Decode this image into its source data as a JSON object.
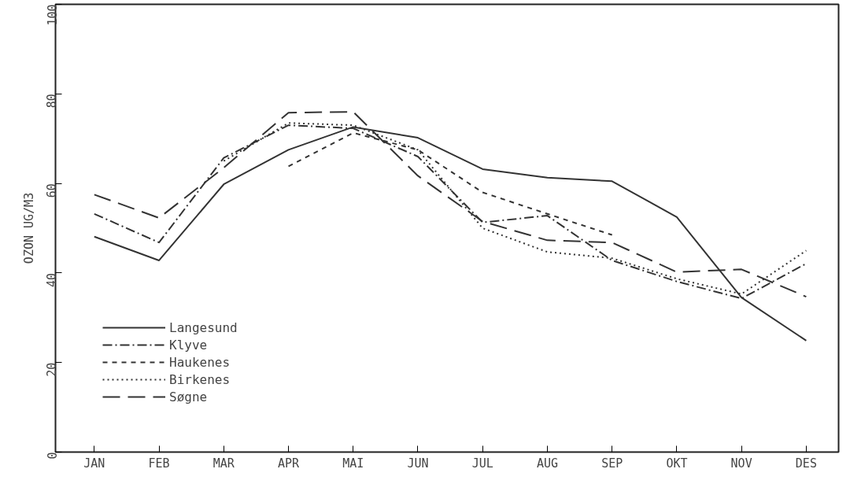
{
  "chart_data": {
    "type": "line",
    "ylabel": "OZON UG/M3",
    "categories": [
      "JAN",
      "FEB",
      "MAR",
      "APR",
      "MAI",
      "JUN",
      "JUL",
      "AUG",
      "SEP",
      "OKT",
      "NOV",
      "DES"
    ],
    "series": [
      {
        "name": "Langesund",
        "color": "#333333",
        "line_style": "solid",
        "values": [
          48.1,
          42.8,
          59.8,
          67.5,
          72.6,
          70.2,
          63.2,
          61.3,
          60.5,
          52.5,
          34.5,
          24.9
        ]
      },
      {
        "name": "Klyve",
        "color": "#333333",
        "line_style": "dashdot",
        "values": [
          53.2,
          46.8,
          65.7,
          73,
          72.3,
          66,
          51.3,
          52.8,
          42.8,
          38.1,
          34.3,
          42.1
        ]
      },
      {
        "name": "Haukenes",
        "color": "#333333",
        "line_style": "dashed",
        "values": [
          null,
          null,
          null,
          63.8,
          71.3,
          67.5,
          58,
          53.2,
          48.5,
          null,
          null,
          null
        ]
      },
      {
        "name": "Birkenes",
        "color": "#333333",
        "line_style": "dotted",
        "values": [
          null,
          null,
          65,
          73.5,
          73,
          67.5,
          50,
          44.7,
          43.3,
          38.7,
          35.3,
          45
        ]
      },
      {
        "name": "Søgne",
        "color": "#333333",
        "line_style": "longdash",
        "values": [
          57.5,
          52.3,
          63.5,
          75.8,
          76,
          61.7,
          51.5,
          47.3,
          46.8,
          40.2,
          40.8,
          34.7
        ]
      }
    ],
    "ylim": [
      0,
      100
    ],
    "yticks": [
      0,
      20,
      40,
      60,
      80,
      100
    ],
    "grid": false,
    "legend": "bottom left"
  }
}
